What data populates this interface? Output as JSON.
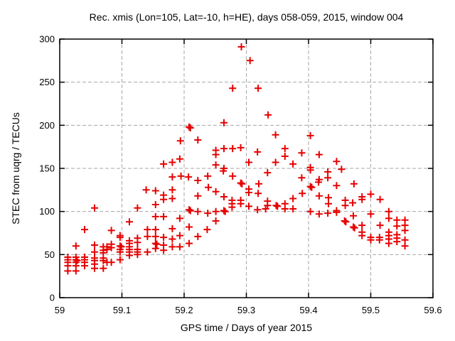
{
  "chart_data": {
    "type": "scatter",
    "title": "Rec. xmis (Lon=105, Lat=-10, h=HE), days 058-059, 2015, window 004",
    "xlabel": "GPS time / Days of year 2015",
    "ylabel": "STEC from uqrg / TECUs",
    "xlim": [
      59,
      59.6
    ],
    "ylim": [
      0,
      300
    ],
    "xticks": [
      59,
      59.1,
      59.2,
      59.3,
      59.4,
      59.5,
      59.6
    ],
    "yticks": [
      0,
      50,
      100,
      150,
      200,
      250,
      300
    ],
    "grid": true,
    "grid_style": "dashed",
    "legend_position": "none",
    "marker": "plus",
    "marker_color": "#e60000",
    "grid_color": "#a6a6a6",
    "axis_color": "#000000",
    "background_color": "#ffffff",
    "points": [
      [
        59.013,
        47
      ],
      [
        59.013,
        44
      ],
      [
        59.013,
        41
      ],
      [
        59.013,
        37
      ],
      [
        59.013,
        31
      ],
      [
        59.026,
        60
      ],
      [
        59.026,
        47
      ],
      [
        59.026,
        44
      ],
      [
        59.028,
        43
      ],
      [
        59.026,
        41
      ],
      [
        59.026,
        37
      ],
      [
        59.026,
        31
      ],
      [
        59.04,
        79
      ],
      [
        59.04,
        47
      ],
      [
        59.04,
        44
      ],
      [
        59.04,
        41
      ],
      [
        59.04,
        37
      ],
      [
        59.056,
        104
      ],
      [
        59.056,
        61
      ],
      [
        59.056,
        53
      ],
      [
        59.056,
        46
      ],
      [
        59.056,
        43
      ],
      [
        59.056,
        39
      ],
      [
        59.056,
        34
      ],
      [
        59.07,
        59
      ],
      [
        59.07,
        55
      ],
      [
        59.07,
        52
      ],
      [
        59.07,
        46
      ],
      [
        59.07,
        43
      ],
      [
        59.07,
        34
      ],
      [
        59.076,
        59
      ],
      [
        59.076,
        56
      ],
      [
        59.076,
        41
      ],
      [
        59.083,
        78
      ],
      [
        59.083,
        62
      ],
      [
        59.083,
        58
      ],
      [
        59.083,
        41
      ],
      [
        59.097,
        72
      ],
      [
        59.097,
        70
      ],
      [
        59.097,
        60
      ],
      [
        59.099,
        59
      ],
      [
        59.097,
        56
      ],
      [
        59.097,
        53
      ],
      [
        59.097,
        44
      ],
      [
        59.112,
        88
      ],
      [
        59.112,
        66
      ],
      [
        59.112,
        63
      ],
      [
        59.112,
        59
      ],
      [
        59.112,
        56
      ],
      [
        59.112,
        53
      ],
      [
        59.112,
        49
      ],
      [
        59.125,
        104
      ],
      [
        59.125,
        69
      ],
      [
        59.125,
        64
      ],
      [
        59.125,
        56
      ],
      [
        59.125,
        53
      ],
      [
        59.125,
        50
      ],
      [
        59.139,
        125
      ],
      [
        59.141,
        79
      ],
      [
        59.141,
        71
      ],
      [
        59.141,
        53
      ],
      [
        59.154,
        124
      ],
      [
        59.154,
        108
      ],
      [
        59.154,
        94
      ],
      [
        59.154,
        79
      ],
      [
        59.154,
        71
      ],
      [
        59.154,
        63
      ],
      [
        59.156,
        62
      ],
      [
        59.154,
        57
      ],
      [
        59.167,
        155
      ],
      [
        59.167,
        119
      ],
      [
        59.167,
        114
      ],
      [
        59.167,
        94
      ],
      [
        59.167,
        70
      ],
      [
        59.167,
        61
      ],
      [
        59.167,
        55
      ],
      [
        59.181,
        157
      ],
      [
        59.181,
        140
      ],
      [
        59.181,
        125
      ],
      [
        59.181,
        115
      ],
      [
        59.181,
        80
      ],
      [
        59.181,
        68
      ],
      [
        59.181,
        59
      ],
      [
        59.193,
        161
      ],
      [
        59.193,
        92
      ],
      [
        59.193,
        72
      ],
      [
        59.193,
        59
      ],
      [
        59.194,
        182
      ],
      [
        59.195,
        141
      ],
      [
        59.207,
        140
      ],
      [
        59.208,
        198
      ],
      [
        59.21,
        197
      ],
      [
        59.208,
        102
      ],
      [
        59.21,
        101
      ],
      [
        59.208,
        82
      ],
      [
        59.208,
        63
      ],
      [
        59.222,
        183
      ],
      [
        59.222,
        136
      ],
      [
        59.222,
        118
      ],
      [
        59.222,
        100
      ],
      [
        59.222,
        71
      ],
      [
        59.238,
        141
      ],
      [
        59.239,
        128
      ],
      [
        59.238,
        98
      ],
      [
        59.237,
        79
      ],
      [
        59.251,
        171
      ],
      [
        59.251,
        166
      ],
      [
        59.251,
        154
      ],
      [
        59.251,
        123
      ],
      [
        59.251,
        100
      ],
      [
        59.251,
        89
      ],
      [
        59.264,
        203
      ],
      [
        59.264,
        173
      ],
      [
        59.264,
        150
      ],
      [
        59.263,
        147
      ],
      [
        59.264,
        117
      ],
      [
        59.264,
        101
      ],
      [
        59.266,
        100
      ],
      [
        59.278,
        243
      ],
      [
        59.278,
        173
      ],
      [
        59.278,
        141
      ],
      [
        59.277,
        113
      ],
      [
        59.277,
        109
      ],
      [
        59.277,
        105
      ],
      [
        59.292,
        291
      ],
      [
        59.291,
        174
      ],
      [
        59.291,
        133
      ],
      [
        59.293,
        132
      ],
      [
        59.291,
        113
      ],
      [
        59.291,
        109
      ],
      [
        59.306,
        275
      ],
      [
        59.304,
        157
      ],
      [
        59.304,
        126
      ],
      [
        59.304,
        122
      ],
      [
        59.304,
        106
      ],
      [
        59.319,
        243
      ],
      [
        59.318,
        169
      ],
      [
        59.32,
        132
      ],
      [
        59.319,
        121
      ],
      [
        59.318,
        102
      ],
      [
        59.331,
        103
      ],
      [
        59.335,
        212
      ],
      [
        59.334,
        145
      ],
      [
        59.334,
        112
      ],
      [
        59.334,
        107
      ],
      [
        59.347,
        189
      ],
      [
        59.347,
        157
      ],
      [
        59.348,
        107
      ],
      [
        59.35,
        106
      ],
      [
        59.362,
        173
      ],
      [
        59.362,
        164
      ],
      [
        59.362,
        109
      ],
      [
        59.362,
        103
      ],
      [
        59.375,
        155
      ],
      [
        59.375,
        115
      ],
      [
        59.375,
        103
      ],
      [
        59.389,
        168
      ],
      [
        59.389,
        139
      ],
      [
        59.39,
        121
      ],
      [
        59.403,
        188
      ],
      [
        59.403,
        151
      ],
      [
        59.403,
        148
      ],
      [
        59.403,
        129
      ],
      [
        59.405,
        128
      ],
      [
        59.403,
        100
      ],
      [
        59.417,
        166
      ],
      [
        59.417,
        137
      ],
      [
        59.416,
        134
      ],
      [
        59.417,
        118
      ],
      [
        59.417,
        97
      ],
      [
        59.431,
        146
      ],
      [
        59.431,
        139
      ],
      [
        59.432,
        116
      ],
      [
        59.432,
        109
      ],
      [
        59.431,
        98
      ],
      [
        59.445,
        158
      ],
      [
        59.445,
        130
      ],
      [
        59.445,
        101
      ],
      [
        59.445,
        99
      ],
      [
        59.453,
        149
      ],
      [
        59.459,
        113
      ],
      [
        59.459,
        107
      ],
      [
        59.458,
        89
      ],
      [
        59.46,
        88
      ],
      [
        59.473,
        132
      ],
      [
        59.471,
        110
      ],
      [
        59.472,
        95
      ],
      [
        59.472,
        82
      ],
      [
        59.474,
        81
      ],
      [
        59.486,
        117
      ],
      [
        59.486,
        114
      ],
      [
        59.486,
        84
      ],
      [
        59.486,
        76
      ],
      [
        59.486,
        72
      ],
      [
        59.5,
        120
      ],
      [
        59.5,
        97
      ],
      [
        59.5,
        70
      ],
      [
        59.5,
        67
      ],
      [
        59.515,
        114
      ],
      [
        59.515,
        84
      ],
      [
        59.514,
        70
      ],
      [
        59.514,
        67
      ],
      [
        59.529,
        100
      ],
      [
        59.529,
        92
      ],
      [
        59.529,
        76
      ],
      [
        59.529,
        72
      ],
      [
        59.529,
        68
      ],
      [
        59.529,
        63
      ],
      [
        59.542,
        90
      ],
      [
        59.542,
        83
      ],
      [
        59.542,
        73
      ],
      [
        59.542,
        69
      ],
      [
        59.542,
        65
      ],
      [
        59.555,
        90
      ],
      [
        59.555,
        84
      ],
      [
        59.555,
        78
      ],
      [
        59.555,
        67
      ],
      [
        59.555,
        60
      ]
    ]
  }
}
